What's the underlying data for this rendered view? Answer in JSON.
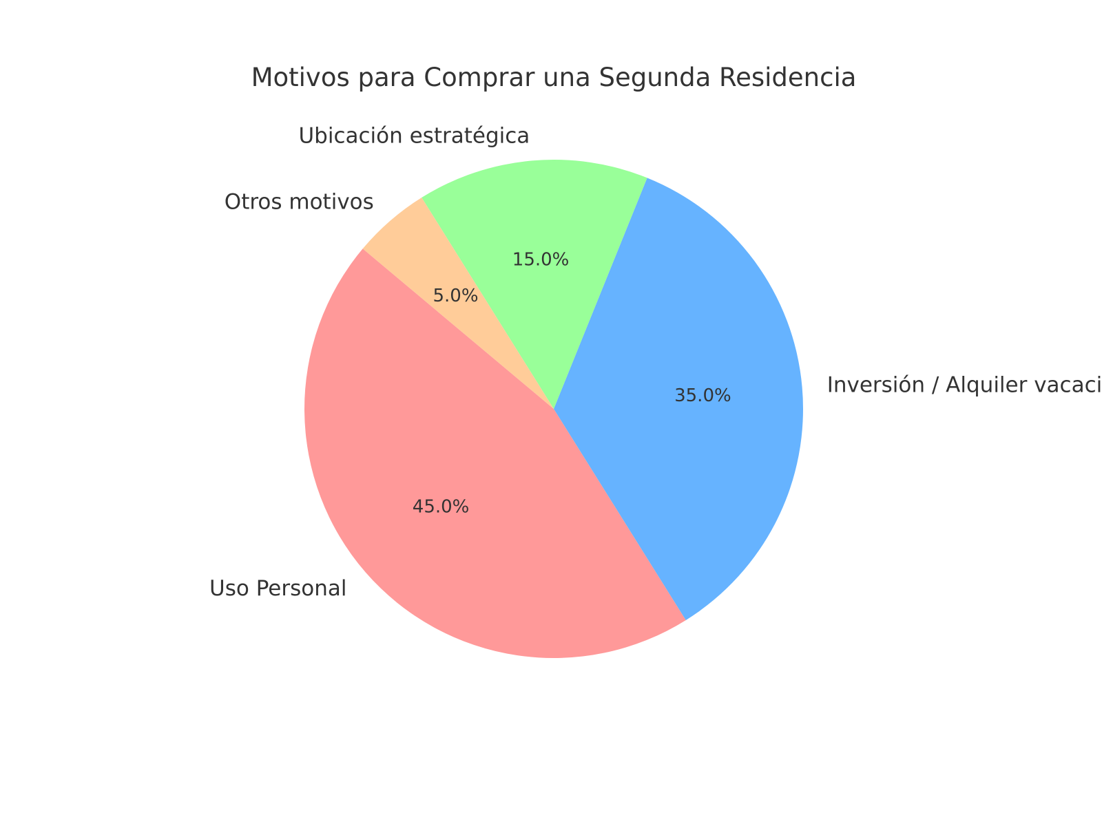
{
  "chart_data": {
    "type": "pie",
    "title": "Motivos para Comprar una Segunda Residencia",
    "start_angle_deg": 140,
    "direction": "counterclockwise",
    "slices": [
      {
        "label": "Uso Personal",
        "value": 45.0,
        "pct_label": "45.0%",
        "color": "#ff9999"
      },
      {
        "label": "Inversión / Alquiler vacacional",
        "value": 35.0,
        "pct_label": "35.0%",
        "color": "#66b3ff"
      },
      {
        "label": "Ubicación estratégica",
        "value": 15.0,
        "pct_label": "15.0%",
        "color": "#99ff99"
      },
      {
        "label": "Otros motivos",
        "value": 5.0,
        "pct_label": "5.0%",
        "color": "#ffcc99"
      }
    ]
  }
}
